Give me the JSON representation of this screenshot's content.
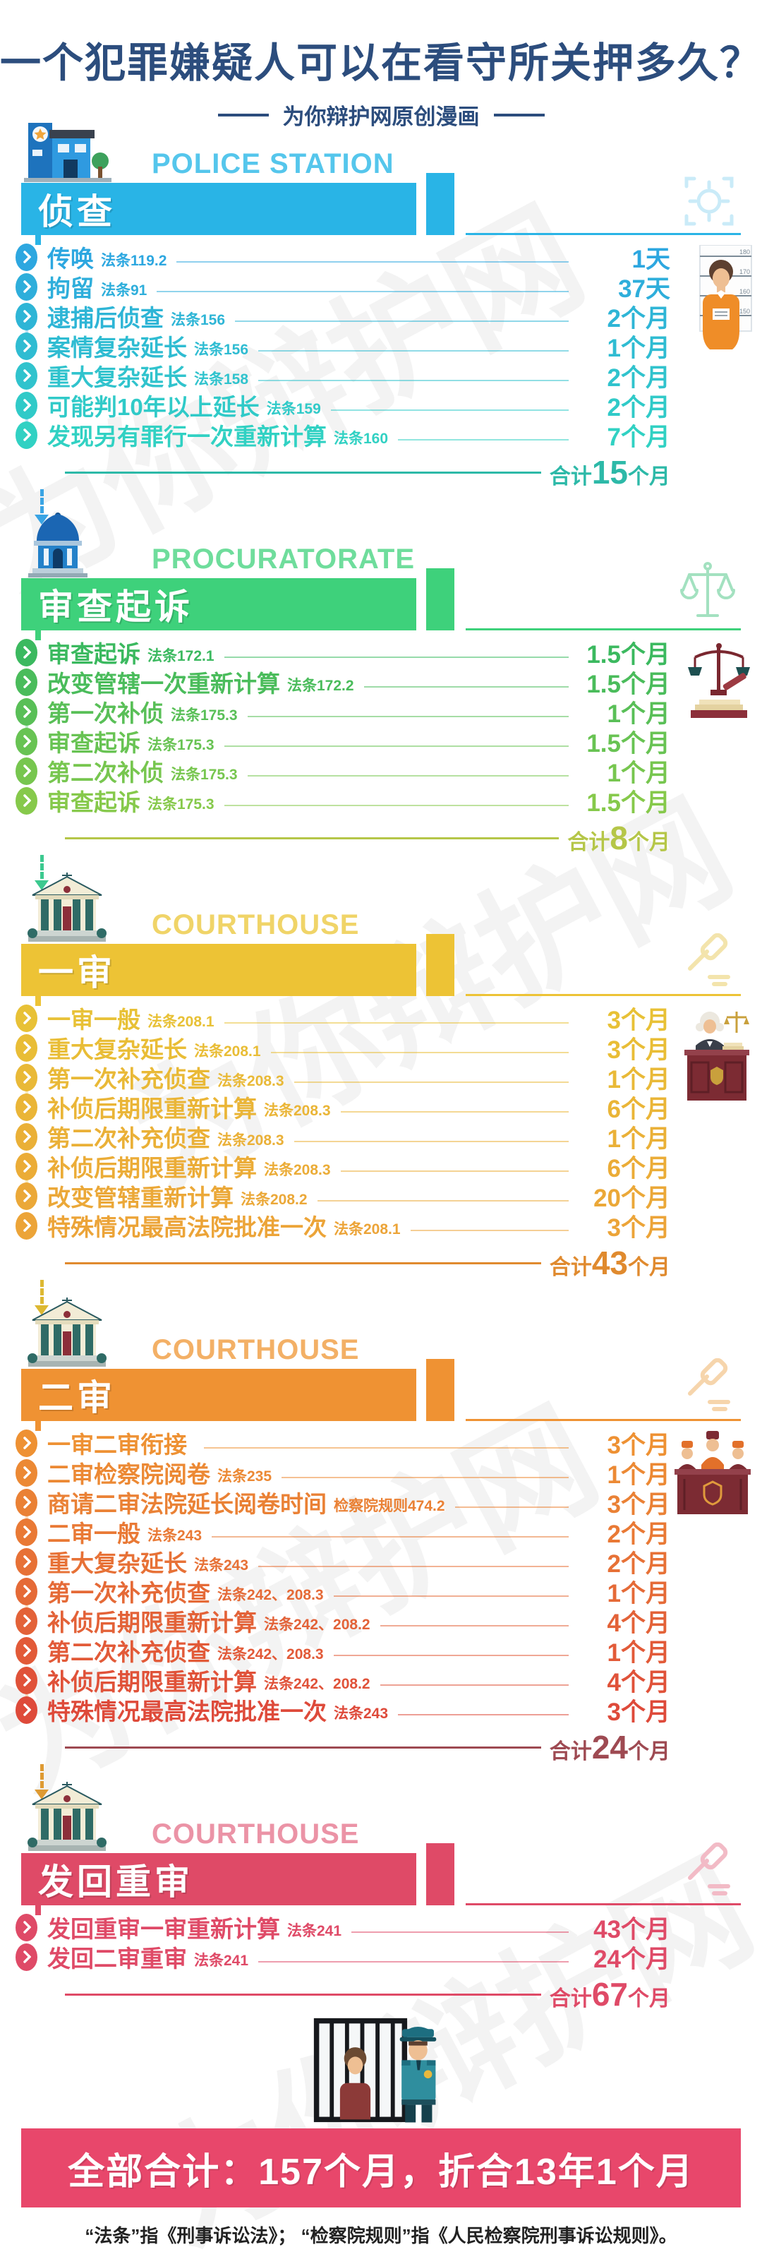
{
  "header": {
    "title": "一个犯罪嫌疑人可以在看守所关押多久？",
    "subtitle": "为你辩护网原创漫画"
  },
  "watermark": {
    "text": "为你辩护网"
  },
  "sections": [
    {
      "id": "zhencha",
      "eng": "POLICE STATION",
      "title": "侦查",
      "banner_color": "#29b4e6",
      "eng_color": "#55c6ec",
      "row_color_start": "#2da7e0",
      "row_color_end": "#31d1c3",
      "total": {
        "prefix": "合计",
        "number": "15",
        "suffix": "个月"
      },
      "total_color": "#2db9a8",
      "arrow_color": "#3aa4e4",
      "building_icon": "police-station-icon",
      "side_icon": "crosshair-icon",
      "side_icon_color": "#c8eaf8",
      "illustration": "prisoner-mugshot-illustration",
      "rows": [
        {
          "label": "传唤",
          "ref": "法条119.2",
          "value": "1天"
        },
        {
          "label": "拘留",
          "ref": "法条91",
          "value": "37天"
        },
        {
          "label": "逮捕后侦查",
          "ref": "法条156",
          "value": "2个月"
        },
        {
          "label": "案情复杂延长",
          "ref": "法条156",
          "value": "1个月"
        },
        {
          "label": "重大复杂延长",
          "ref": "法条158",
          "value": "2个月"
        },
        {
          "label": "可能判10年以上延长",
          "ref": "法条159",
          "value": "2个月"
        },
        {
          "label": "发现另有罪行一次重新计算",
          "ref": "法条160",
          "value": "7个月"
        }
      ]
    },
    {
      "id": "shencha-qisu",
      "eng": "PROCURATORATE",
      "title": "审查起诉",
      "banner_color": "#3ed17b",
      "eng_color": "#6fdd9c",
      "row_color_start": "#3bb95f",
      "row_color_end": "#86c94b",
      "total": {
        "prefix": "合计",
        "number": "8",
        "suffix": "个月"
      },
      "total_color": "#b5c648",
      "arrow_color": "#3cc98f",
      "building_icon": "procuratorate-icon",
      "side_icon": "scales-icon",
      "side_icon_color": "#9fe0bd",
      "illustration": "scales-book-illustration",
      "rows": [
        {
          "label": "审查起诉",
          "ref": "法条172.1",
          "value": "1.5个月"
        },
        {
          "label": "改变管辖一次重新计算",
          "ref": "法条172.2",
          "value": "1.5个月"
        },
        {
          "label": "第一次补侦",
          "ref": "法条175.3",
          "value": "1个月"
        },
        {
          "label": "审查起诉",
          "ref": "法条175.3",
          "value": "1.5个月"
        },
        {
          "label": "第二次补侦",
          "ref": "法条175.3",
          "value": "1个月"
        },
        {
          "label": "审查起诉",
          "ref": "法条175.3",
          "value": "1.5个月"
        }
      ]
    },
    {
      "id": "yishen",
      "eng": "COURTHOUSE",
      "title": "一审",
      "banner_color": "#edc335",
      "eng_color": "#f0d468",
      "row_color_start": "#e8c136",
      "row_color_end": "#eca438",
      "total": {
        "prefix": "合计",
        "number": "43",
        "suffix": "个月"
      },
      "total_color": "#e08a2e",
      "arrow_color": "#ddb832",
      "building_icon": "courthouse-icon",
      "side_icon": "gavel-icon",
      "side_icon_color": "#f3e3a8",
      "illustration": "judge-bench-illustration",
      "rows": [
        {
          "label": "一审一般",
          "ref": "法条208.1",
          "value": "3个月"
        },
        {
          "label": "重大复杂延长",
          "ref": "法条208.1",
          "value": "3个月"
        },
        {
          "label": "第一次补充侦查",
          "ref": "法条208.3",
          "value": "1个月"
        },
        {
          "label": "补侦后期限重新计算",
          "ref": "法条208.3",
          "value": "6个月"
        },
        {
          "label": "第二次补充侦查",
          "ref": "法条208.3",
          "value": "1个月"
        },
        {
          "label": "补侦后期限重新计算",
          "ref": "法条208.3",
          "value": "6个月"
        },
        {
          "label": "改变管辖重新计算",
          "ref": "法条208.2",
          "value": "20个月"
        },
        {
          "label": "特殊情况最高法院批准一次",
          "ref": "法条208.1",
          "value": "3个月"
        }
      ]
    },
    {
      "id": "ershen",
      "eng": "COURTHOUSE",
      "title": "二审",
      "banner_color": "#ef9233",
      "eng_color": "#f3b066",
      "row_color_start": "#ee9133",
      "row_color_end": "#de4a3a",
      "total": {
        "prefix": "合计",
        "number": "24",
        "suffix": "个月"
      },
      "total_color": "#9e4a52",
      "arrow_color": "#de9a33",
      "building_icon": "courthouse-icon",
      "side_icon": "gavel-icon",
      "side_icon_color": "#f6d3a8",
      "illustration": "tribunal-illustration",
      "rows": [
        {
          "label": "一审二审衔接",
          "ref": "",
          "value": "3个月"
        },
        {
          "label": "二审检察院阅卷",
          "ref": "法条235",
          "value": "1个月"
        },
        {
          "label": "商请二审法院延长阅卷时间",
          "ref": "检察院规则474.2",
          "value": "3个月"
        },
        {
          "label": "二审一般",
          "ref": "法条243",
          "value": "2个月"
        },
        {
          "label": "重大复杂延长",
          "ref": "法条243",
          "value": "2个月"
        },
        {
          "label": "第一次补充侦查",
          "ref": "法条242、208.3",
          "value": "1个月"
        },
        {
          "label": "补侦后期限重新计算",
          "ref": "法条242、208.2",
          "value": "4个月"
        },
        {
          "label": "第二次补充侦查",
          "ref": "法条242、208.3",
          "value": "1个月"
        },
        {
          "label": "补侦后期限重新计算",
          "ref": "法条242、208.2",
          "value": "4个月"
        },
        {
          "label": "特殊情况最高法院批准一次",
          "ref": "法条243",
          "value": "3个月"
        }
      ]
    },
    {
      "id": "fahui-chongshen",
      "eng": "COURTHOUSE",
      "title": "发回重审",
      "banner_color": "#df4a67",
      "eng_color": "#eb93a6",
      "row_color_start": "#df4a67",
      "row_color_end": "#df4a67",
      "total": {
        "prefix": "合计",
        "number": "67",
        "suffix": "个月"
      },
      "total_color": "#df4a67",
      "arrow_color": null,
      "building_icon": "courthouse-icon",
      "side_icon": "gavel-icon",
      "side_icon_color": "#f2b8c4",
      "illustration": null,
      "rows": [
        {
          "label": "发回重审一审重新计算",
          "ref": "法条241",
          "value": "43个月"
        },
        {
          "label": "发回二审重审",
          "ref": "法条241",
          "value": "24个月"
        }
      ]
    }
  ],
  "footer": {
    "total": "全部合计：157个月，折合13年1个月",
    "note": "“法条”指《刑事诉讼法》；  “检察院规则”指《人民检察院刑事诉讼规则》。"
  }
}
